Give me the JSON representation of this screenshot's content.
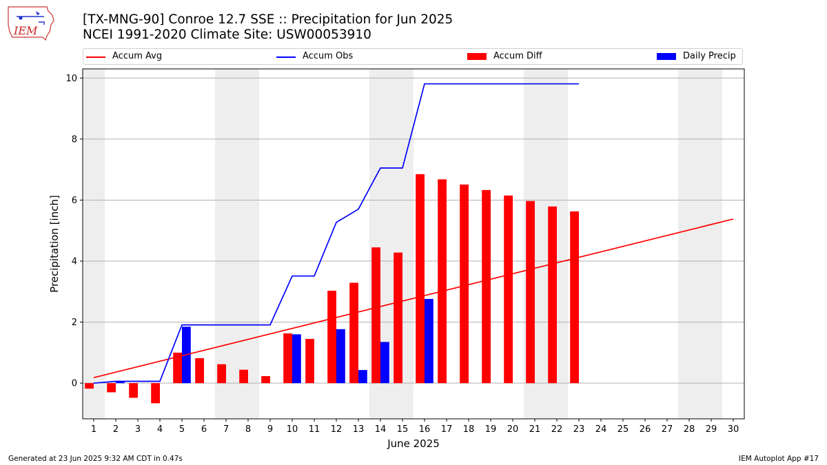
{
  "header": {
    "title_line1": "[TX-MNG-90] Conroe 12.7 SSE :: Precipitation for Jun 2025",
    "title_line2": "NCEI 1991-2020 Climate Site: USW00053910",
    "logo_text": "IEM"
  },
  "legend": {
    "accum_avg": "Accum Avg",
    "accum_obs": "Accum Obs",
    "accum_diff": "Accum Diff",
    "daily_precip": "Daily Precip"
  },
  "footer": {
    "left": "Generated at 23 Jun 2025 9:32 AM CDT in 0.47s",
    "right": "IEM Autoplot App #17"
  },
  "colors": {
    "avg": "#ff0000",
    "obs": "#0000ff",
    "diff": "#ff0000",
    "daily": "#0000ff",
    "weekend_band": "#eeeeee",
    "grid": "#b0b0b0"
  },
  "chart_data": {
    "type": "bar",
    "xlabel": "June 2025",
    "ylabel": "Precipitation [inch]",
    "x_ticks": [
      "1",
      "2",
      "3",
      "4",
      "5",
      "6",
      "7",
      "8",
      "9",
      "10",
      "11",
      "12",
      "13",
      "14",
      "15",
      "16",
      "17",
      "18",
      "19",
      "20",
      "21",
      "22",
      "23",
      "24",
      "25",
      "26",
      "27",
      "28",
      "29",
      "30"
    ],
    "xlim": [
      0.5,
      30.5
    ],
    "ylim": [
      -1.17,
      10.3
    ],
    "y_ticks": [
      0,
      2,
      4,
      6,
      8,
      10
    ],
    "grid": "horizontal",
    "weekend_days": [
      1,
      7,
      8,
      14,
      15,
      21,
      22,
      28,
      29
    ],
    "legend_position": "top",
    "series": [
      {
        "name": "Accum Avg",
        "kind": "line",
        "days": [
          1,
          30
        ],
        "values": [
          0.18,
          5.38
        ]
      },
      {
        "name": "Accum Obs",
        "kind": "line",
        "days": [
          1,
          2,
          3,
          4,
          5,
          6,
          7,
          8,
          9,
          10,
          11,
          12,
          13,
          14,
          15,
          16,
          17,
          18,
          19,
          20,
          21,
          22,
          23
        ],
        "values": [
          0.0,
          0.06,
          0.06,
          0.06,
          1.91,
          1.91,
          1.91,
          1.91,
          1.91,
          3.51,
          3.51,
          5.27,
          5.7,
          7.05,
          7.05,
          9.81,
          9.81,
          9.81,
          9.81,
          9.81,
          9.81,
          9.81,
          9.81
        ]
      },
      {
        "name": "Accum Diff",
        "kind": "bar",
        "days": [
          1,
          2,
          3,
          4,
          5,
          6,
          7,
          8,
          9,
          10,
          11,
          12,
          13,
          14,
          15,
          16,
          17,
          18,
          19,
          20,
          21,
          22,
          23
        ],
        "values": [
          -0.18,
          -0.3,
          -0.48,
          -0.66,
          1.0,
          0.82,
          0.62,
          0.44,
          0.23,
          1.63,
          1.45,
          3.03,
          3.29,
          4.45,
          4.28,
          6.85,
          6.68,
          6.51,
          6.33,
          6.15,
          5.97,
          5.79,
          5.63
        ]
      },
      {
        "name": "Daily Precip",
        "kind": "bar",
        "days": [
          2,
          5,
          10,
          12,
          13,
          14,
          16
        ],
        "values": [
          0.06,
          1.85,
          1.6,
          1.77,
          0.43,
          1.35,
          2.76
        ]
      }
    ]
  }
}
